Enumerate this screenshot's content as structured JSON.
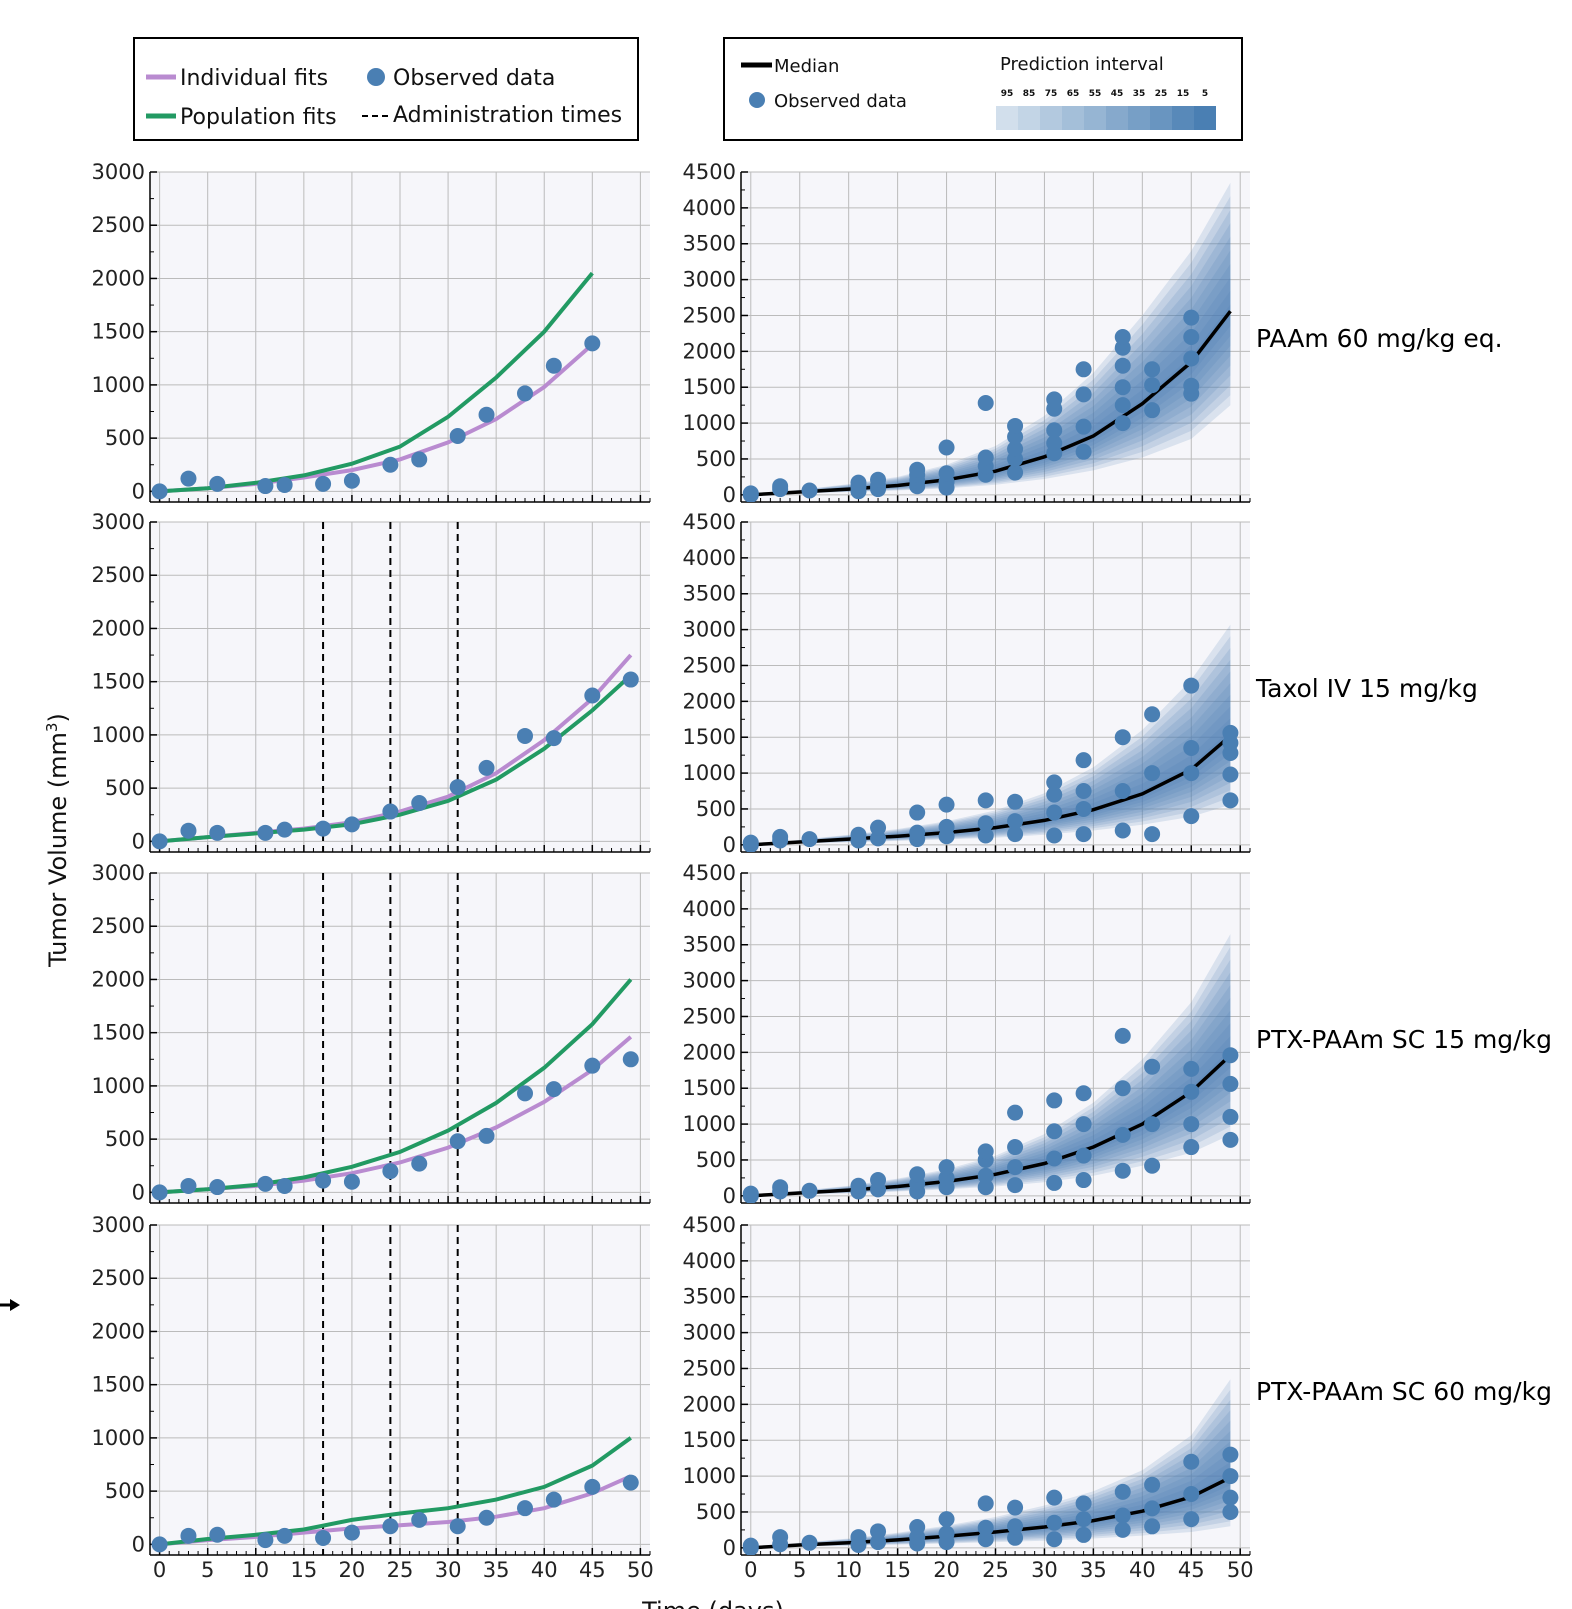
{
  "legend_left": {
    "individual": "Individual fits",
    "population": "Population fits",
    "observed": "Observed data",
    "admin": "Administration times"
  },
  "legend_right": {
    "median": "Median",
    "observed": "Observed data",
    "pi_title": "Prediction interval",
    "pi_levels": [
      "95",
      "85",
      "75",
      "65",
      "55",
      "45",
      "35",
      "25",
      "15",
      "5"
    ]
  },
  "colors": {
    "individual": "#b98bd0",
    "population": "#229a63",
    "observed": "#4a7fb3",
    "median": "#000000",
    "band_rgb": "74,127,179",
    "plot_bg": "#f6f6fa"
  },
  "axes": {
    "xlabel": "Time (days)",
    "ylabel_main": "Tumor Volume (mm",
    "ylabel_sup": "3",
    "ylabel_end": ")",
    "x_ticks": [
      0,
      5,
      10,
      15,
      20,
      25,
      30,
      35,
      40,
      45,
      50
    ],
    "left_y_ticks": [
      0,
      500,
      1000,
      1500,
      2000,
      2500,
      3000
    ],
    "right_y_ticks": [
      0,
      500,
      1000,
      1500,
      2000,
      2500,
      3000,
      3500,
      4000,
      4500
    ],
    "xlim": [
      -1,
      51
    ],
    "left_ylim": [
      -100,
      3000
    ],
    "right_ylim": [
      -100,
      4500
    ]
  },
  "chart_data": [
    {
      "type": "line",
      "panel": "left",
      "row_label": "PAAm 60 mg/kg eq.",
      "admin_times": [],
      "observed": {
        "x": [
          0,
          3,
          6,
          11,
          13,
          17,
          20,
          24,
          27,
          31,
          34,
          38,
          41,
          45
        ],
        "y": [
          0,
          120,
          70,
          50,
          60,
          70,
          100,
          250,
          300,
          520,
          720,
          920,
          1180,
          1390
        ]
      },
      "individual_fit": {
        "x": [
          0,
          5,
          10,
          15,
          20,
          25,
          30,
          35,
          40,
          45
        ],
        "y": [
          0,
          30,
          70,
          130,
          200,
          300,
          460,
          680,
          980,
          1380
        ]
      },
      "population_fit": {
        "x": [
          0,
          5,
          10,
          15,
          20,
          25,
          30,
          35,
          40,
          45
        ],
        "y": [
          0,
          30,
          80,
          150,
          260,
          420,
          700,
          1070,
          1500,
          2050
        ]
      }
    },
    {
      "type": "line",
      "panel": "left",
      "row_label": "Taxol IV 15 mg/kg",
      "admin_times": [
        17,
        24,
        31
      ],
      "observed": {
        "x": [
          0,
          3,
          6,
          11,
          13,
          17,
          20,
          24,
          27,
          31,
          34,
          38,
          41,
          45,
          49
        ],
        "y": [
          0,
          100,
          80,
          80,
          110,
          120,
          160,
          280,
          360,
          510,
          690,
          990,
          970,
          1370,
          1520
        ]
      },
      "individual_fit": {
        "x": [
          0,
          5,
          10,
          15,
          20,
          25,
          30,
          35,
          40,
          45,
          49
        ],
        "y": [
          0,
          40,
          80,
          120,
          180,
          280,
          420,
          640,
          950,
          1340,
          1750
        ]
      },
      "population_fit": {
        "x": [
          0,
          5,
          10,
          15,
          20,
          25,
          30,
          35,
          40,
          45,
          49
        ],
        "y": [
          0,
          40,
          75,
          110,
          160,
          250,
          380,
          580,
          870,
          1230,
          1560
        ]
      }
    },
    {
      "type": "line",
      "panel": "left",
      "row_label": "PTX-PAAm SC 15 mg/kg",
      "admin_times": [
        17,
        24,
        31
      ],
      "observed": {
        "x": [
          0,
          3,
          6,
          11,
          13,
          17,
          20,
          24,
          27,
          31,
          34,
          38,
          41,
          45,
          49
        ],
        "y": [
          0,
          60,
          50,
          80,
          60,
          110,
          100,
          200,
          270,
          480,
          530,
          930,
          970,
          1190,
          1250
        ]
      },
      "individual_fit": {
        "x": [
          0,
          5,
          10,
          15,
          20,
          25,
          30,
          35,
          40,
          45,
          49
        ],
        "y": [
          0,
          30,
          60,
          110,
          180,
          280,
          420,
          610,
          850,
          1150,
          1460
        ]
      },
      "population_fit": {
        "x": [
          0,
          5,
          10,
          15,
          20,
          25,
          30,
          35,
          40,
          45,
          49
        ],
        "y": [
          0,
          30,
          70,
          140,
          240,
          380,
          580,
          840,
          1170,
          1580,
          2000
        ]
      }
    },
    {
      "type": "line",
      "panel": "left",
      "row_label": "PTX-PAAm SC 60 mg/kg",
      "admin_times": [
        17,
        24,
        31
      ],
      "observed": {
        "x": [
          0,
          3,
          6,
          11,
          13,
          17,
          20,
          24,
          27,
          31,
          34,
          38,
          41,
          45,
          49
        ],
        "y": [
          0,
          80,
          90,
          40,
          80,
          60,
          110,
          170,
          230,
          170,
          250,
          340,
          420,
          540,
          580
        ]
      },
      "individual_fit": {
        "x": [
          0,
          5,
          10,
          15,
          20,
          25,
          30,
          35,
          40,
          45,
          49
        ],
        "y": [
          0,
          40,
          70,
          110,
          150,
          180,
          210,
          260,
          340,
          480,
          640
        ]
      },
      "population_fit": {
        "x": [
          0,
          5,
          10,
          15,
          20,
          25,
          30,
          35,
          40,
          45,
          49
        ],
        "y": [
          0,
          50,
          90,
          140,
          230,
          290,
          340,
          420,
          540,
          740,
          1000
        ]
      }
    },
    {
      "type": "area",
      "panel": "right",
      "row_label": "PAAm 60 mg/kg eq.",
      "median": {
        "x": [
          0,
          5,
          10,
          15,
          20,
          25,
          30,
          35,
          40,
          45,
          49
        ],
        "y": [
          0,
          40,
          80,
          130,
          210,
          330,
          530,
          820,
          1270,
          1850,
          2560
        ]
      },
      "upper95": [
        0,
        70,
        150,
        250,
        420,
        680,
        1100,
        1700,
        2500,
        3400,
        4350
      ],
      "lower95": [
        0,
        20,
        40,
        60,
        90,
        140,
        220,
        340,
        520,
        780,
        1250
      ],
      "observed": {
        "x": [
          0,
          0,
          3,
          3,
          6,
          11,
          11,
          11,
          13,
          13,
          13,
          17,
          17,
          17,
          17,
          20,
          20,
          20,
          20,
          24,
          24,
          24,
          24,
          27,
          27,
          27,
          27,
          27,
          31,
          31,
          31,
          31,
          31,
          34,
          34,
          34,
          34,
          38,
          38,
          38,
          38,
          38,
          38,
          41,
          41,
          41,
          45,
          45,
          45,
          45,
          45
        ],
        "y": [
          0,
          20,
          80,
          120,
          60,
          50,
          110,
          170,
          80,
          130,
          210,
          120,
          200,
          280,
          350,
          100,
          180,
          300,
          660,
          280,
          400,
          520,
          1280,
          310,
          500,
          640,
          810,
          960,
          580,
          720,
          900,
          1200,
          1330,
          600,
          950,
          1400,
          1750,
          1000,
          1250,
          1500,
          1800,
          2050,
          2200,
          1180,
          1530,
          1750,
          1410,
          1520,
          1900,
          2200,
          2470
        ]
      }
    },
    {
      "type": "area",
      "panel": "right",
      "row_label": "Taxol IV 15 mg/kg",
      "median": {
        "x": [
          0,
          5,
          10,
          15,
          20,
          25,
          30,
          35,
          40,
          45,
          49
        ],
        "y": [
          0,
          40,
          80,
          120,
          170,
          240,
          340,
          490,
          710,
          1050,
          1520
        ]
      },
      "upper95": [
        0,
        70,
        140,
        220,
        330,
        480,
        720,
        1080,
        1600,
        2300,
        3070
      ],
      "lower95": [
        0,
        20,
        35,
        55,
        75,
        100,
        140,
        200,
        280,
        390,
        560
      ],
      "observed": {
        "x": [
          0,
          0,
          3,
          3,
          6,
          11,
          11,
          13,
          13,
          17,
          17,
          17,
          20,
          20,
          20,
          24,
          24,
          24,
          27,
          27,
          27,
          31,
          31,
          31,
          31,
          34,
          34,
          34,
          34,
          38,
          38,
          38,
          41,
          41,
          41,
          45,
          45,
          45,
          45,
          49,
          49,
          49,
          49,
          49
        ],
        "y": [
          0,
          30,
          60,
          110,
          80,
          60,
          140,
          90,
          240,
          80,
          170,
          450,
          120,
          250,
          560,
          130,
          300,
          620,
          150,
          330,
          600,
          130,
          450,
          700,
          870,
          150,
          500,
          750,
          1180,
          200,
          750,
          1500,
          150,
          1000,
          1820,
          400,
          1000,
          1350,
          2220,
          620,
          980,
          1280,
          1420,
          1560
        ]
      }
    },
    {
      "type": "area",
      "panel": "right",
      "row_label": "PTX-PAAm SC 15 mg/kg",
      "median": {
        "x": [
          0,
          5,
          10,
          15,
          20,
          25,
          30,
          35,
          40,
          45,
          49
        ],
        "y": [
          0,
          40,
          80,
          130,
          200,
          300,
          450,
          680,
          1000,
          1450,
          1960
        ]
      },
      "upper95": [
        0,
        70,
        140,
        240,
        370,
        560,
        860,
        1300,
        1900,
        2700,
        3650
      ],
      "lower95": [
        0,
        20,
        35,
        60,
        90,
        130,
        190,
        280,
        420,
        600,
        850
      ],
      "observed": {
        "x": [
          0,
          0,
          3,
          3,
          6,
          11,
          11,
          13,
          13,
          17,
          17,
          17,
          20,
          20,
          20,
          24,
          24,
          24,
          24,
          27,
          27,
          27,
          27,
          31,
          31,
          31,
          31,
          34,
          34,
          34,
          34,
          38,
          38,
          38,
          38,
          41,
          41,
          41,
          45,
          45,
          45,
          45,
          49,
          49,
          49,
          49
        ],
        "y": [
          0,
          30,
          60,
          120,
          70,
          60,
          140,
          90,
          220,
          60,
          170,
          300,
          120,
          250,
          400,
          120,
          280,
          500,
          620,
          150,
          400,
          680,
          1160,
          180,
          520,
          900,
          1330,
          220,
          560,
          1000,
          1430,
          350,
          850,
          1500,
          2230,
          420,
          1000,
          1800,
          680,
          1000,
          1450,
          1770,
          780,
          1100,
          1560,
          1960
        ]
      }
    },
    {
      "type": "area",
      "panel": "right",
      "row_label": "PTX-PAAm SC 60 mg/kg",
      "median": {
        "x": [
          0,
          5,
          10,
          15,
          20,
          25,
          30,
          35,
          40,
          45,
          49
        ],
        "y": [
          0,
          40,
          70,
          110,
          160,
          220,
          290,
          380,
          510,
          710,
          980
        ]
      },
      "upper95": [
        0,
        70,
        130,
        210,
        310,
        430,
        590,
        790,
        1080,
        1570,
        2350
      ],
      "lower95": [
        0,
        20,
        30,
        45,
        60,
        80,
        100,
        130,
        170,
        220,
        300
      ],
      "observed": {
        "x": [
          0,
          0,
          3,
          3,
          6,
          11,
          11,
          13,
          13,
          17,
          17,
          17,
          20,
          20,
          20,
          24,
          24,
          24,
          27,
          27,
          27,
          31,
          31,
          31,
          34,
          34,
          34,
          38,
          38,
          38,
          41,
          41,
          41,
          45,
          45,
          45,
          49,
          49,
          49,
          49
        ],
        "y": [
          0,
          30,
          50,
          150,
          70,
          40,
          150,
          80,
          230,
          60,
          150,
          290,
          80,
          200,
          400,
          120,
          280,
          620,
          140,
          300,
          560,
          120,
          350,
          700,
          180,
          400,
          620,
          250,
          450,
          780,
          300,
          550,
          880,
          400,
          750,
          1200,
          500,
          700,
          1000,
          1300
        ]
      }
    }
  ]
}
